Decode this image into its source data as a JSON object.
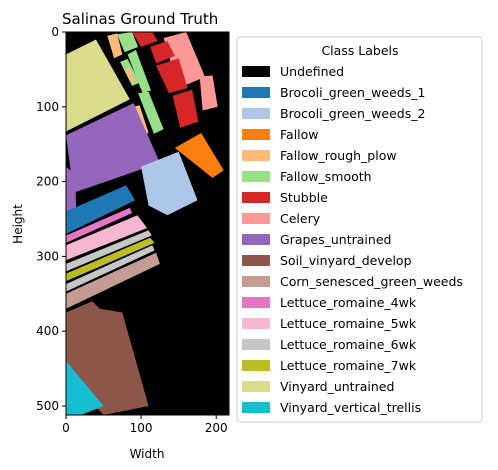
{
  "chart_data": {
    "type": "heatmap",
    "title": "Salinas Ground Truth",
    "xlabel": "Width",
    "ylabel": "Height",
    "xlim": [
      0,
      217
    ],
    "ylim": [
      512,
      0
    ],
    "xticks": [
      0,
      100,
      200
    ],
    "yticks": [
      0,
      100,
      200,
      300,
      400,
      500
    ],
    "legend_title": "Class Labels",
    "legend_position": "right, outside plot",
    "classes": [
      {
        "name": "Undefined",
        "color": "#000000"
      },
      {
        "name": "Brocoli_green_weeds_1",
        "color": "#1f77b4"
      },
      {
        "name": "Brocoli_green_weeds_2",
        "color": "#aec7e8"
      },
      {
        "name": "Fallow",
        "color": "#ff7f0e"
      },
      {
        "name": "Fallow_rough_plow",
        "color": "#ffbb78"
      },
      {
        "name": "Fallow_smooth",
        "color": "#98df8a"
      },
      {
        "name": "Stubble",
        "color": "#d62728"
      },
      {
        "name": "Celery",
        "color": "#ff9896"
      },
      {
        "name": "Grapes_untrained",
        "color": "#9467bd"
      },
      {
        "name": "Soil_vinyard_develop",
        "color": "#8c564b"
      },
      {
        "name": "Corn_senesced_green_weeds",
        "color": "#c49c94"
      },
      {
        "name": "Lettuce_romaine_4wk",
        "color": "#e377c2"
      },
      {
        "name": "Lettuce_romaine_5wk",
        "color": "#f7b6d2"
      },
      {
        "name": "Lettuce_romaine_6wk",
        "color": "#c7c7c7"
      },
      {
        "name": "Lettuce_romaine_7wk",
        "color": "#bcbd22"
      },
      {
        "name": "Vinyard_untrained",
        "color": "#dbdb8d"
      },
      {
        "name": "Vinyard_vertical_trellis",
        "color": "#17becf"
      }
    ],
    "regions": [
      {
        "class": 15,
        "polygon": [
          [
            0,
            30
          ],
          [
            40,
            10
          ],
          [
            85,
            90
          ],
          [
            0,
            133
          ]
        ]
      },
      {
        "class": 4,
        "polygon": [
          [
            55,
            5
          ],
          [
            68,
            2
          ],
          [
            75,
            30
          ],
          [
            64,
            35
          ]
        ]
      },
      {
        "class": 5,
        "polygon": [
          [
            68,
            3
          ],
          [
            88,
            0
          ],
          [
            96,
            20
          ],
          [
            78,
            27
          ]
        ]
      },
      {
        "class": 6,
        "polygon": [
          [
            88,
            0
          ],
          [
            115,
            0
          ],
          [
            122,
            12
          ],
          [
            100,
            20
          ]
        ]
      },
      {
        "class": 7,
        "polygon": [
          [
            130,
            8
          ],
          [
            160,
            0
          ],
          [
            185,
            60
          ],
          [
            150,
            75
          ]
        ]
      },
      {
        "class": 7,
        "polygon": [
          [
            178,
            60
          ],
          [
            195,
            58
          ],
          [
            202,
            100
          ],
          [
            182,
            105
          ]
        ]
      },
      {
        "class": 6,
        "polygon": [
          [
            112,
            20
          ],
          [
            135,
            12
          ],
          [
            145,
            32
          ],
          [
            120,
            42
          ]
        ]
      },
      {
        "class": 6,
        "polygon": [
          [
            120,
            45
          ],
          [
            150,
            35
          ],
          [
            162,
            75
          ],
          [
            137,
            82
          ]
        ]
      },
      {
        "class": 6,
        "polygon": [
          [
            142,
            85
          ],
          [
            168,
            77
          ],
          [
            176,
            120
          ],
          [
            152,
            128
          ]
        ]
      },
      {
        "class": 5,
        "polygon": [
          [
            82,
            30
          ],
          [
            93,
            24
          ],
          [
            113,
            78
          ],
          [
            102,
            82
          ]
        ]
      },
      {
        "class": 5,
        "polygon": [
          [
            96,
            82
          ],
          [
            110,
            80
          ],
          [
            130,
            130
          ],
          [
            117,
            136
          ]
        ]
      },
      {
        "class": 5,
        "polygon": [
          [
            72,
            40
          ],
          [
            82,
            36
          ],
          [
            98,
            68
          ],
          [
            88,
            72
          ]
        ]
      },
      {
        "class": 4,
        "polygon": [
          [
            90,
            100
          ],
          [
            98,
            98
          ],
          [
            110,
            135
          ],
          [
            102,
            138
          ]
        ]
      },
      {
        "class": 4,
        "polygon": [
          [
            78,
            50
          ],
          [
            84,
            48
          ],
          [
            94,
            66
          ],
          [
            88,
            68
          ]
        ]
      },
      {
        "class": 8,
        "polygon": [
          [
            0,
            138
          ],
          [
            90,
            95
          ],
          [
            125,
            175
          ],
          [
            10,
            215
          ]
        ]
      },
      {
        "class": 8,
        "polygon": [
          [
            0,
            180
          ],
          [
            12,
            190
          ],
          [
            14,
            250
          ],
          [
            0,
            253
          ]
        ]
      },
      {
        "class": 3,
        "polygon": [
          [
            145,
            155
          ],
          [
            180,
            135
          ],
          [
            210,
            185
          ],
          [
            195,
            195
          ]
        ]
      },
      {
        "class": 2,
        "polygon": [
          [
            100,
            180
          ],
          [
            150,
            160
          ],
          [
            175,
            225
          ],
          [
            135,
            245
          ],
          [
            110,
            232
          ]
        ]
      },
      {
        "class": 1,
        "polygon": [
          [
            0,
            240
          ],
          [
            80,
            205
          ],
          [
            92,
            225
          ],
          [
            0,
            270
          ]
        ]
      },
      {
        "class": 11,
        "polygon": [
          [
            0,
            272
          ],
          [
            85,
            235
          ],
          [
            88,
            242
          ],
          [
            0,
            282
          ]
        ]
      },
      {
        "class": 12,
        "polygon": [
          [
            0,
            285
          ],
          [
            95,
            245
          ],
          [
            108,
            262
          ],
          [
            0,
            305
          ]
        ]
      },
      {
        "class": 13,
        "polygon": [
          [
            0,
            310
          ],
          [
            110,
            265
          ],
          [
            114,
            272
          ],
          [
            0,
            320
          ]
        ]
      },
      {
        "class": 14,
        "polygon": [
          [
            0,
            323
          ],
          [
            112,
            275
          ],
          [
            118,
            282
          ],
          [
            0,
            333
          ]
        ]
      },
      {
        "class": 13,
        "polygon": [
          [
            0,
            337
          ],
          [
            115,
            285
          ],
          [
            118,
            292
          ],
          [
            0,
            347
          ]
        ]
      },
      {
        "class": 10,
        "polygon": [
          [
            0,
            350
          ],
          [
            120,
            295
          ],
          [
            125,
            310
          ],
          [
            0,
            370
          ]
        ]
      },
      {
        "class": 9,
        "polygon": [
          [
            0,
            375
          ],
          [
            35,
            360
          ],
          [
            45,
            370
          ],
          [
            75,
            375
          ],
          [
            110,
            500
          ],
          [
            50,
            512
          ],
          [
            0,
            460
          ]
        ]
      },
      {
        "class": 16,
        "polygon": [
          [
            0,
            440
          ],
          [
            50,
            500
          ],
          [
            20,
            512
          ],
          [
            0,
            512
          ]
        ]
      }
    ]
  }
}
